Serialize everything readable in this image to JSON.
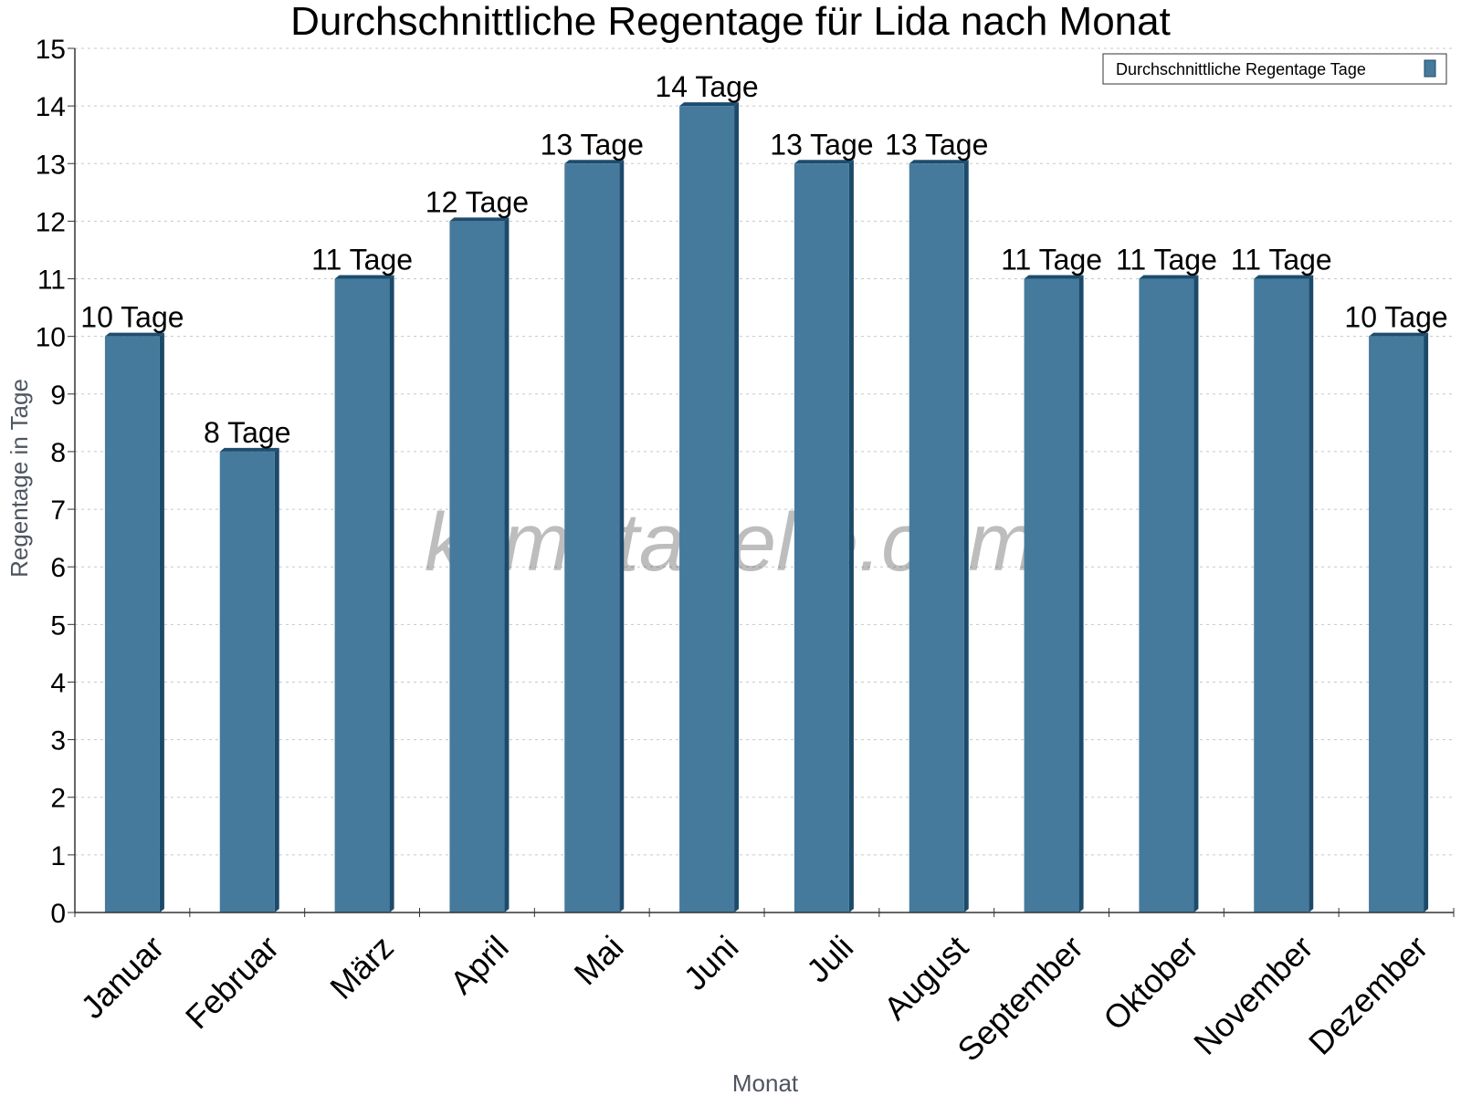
{
  "chart_data": {
    "type": "bar",
    "title": "Durchschnittliche Regentage für Lida nach Monat",
    "xlabel": "Monat",
    "ylabel": "Regentage in Tage",
    "ylim": [
      0,
      15
    ],
    "yticks": [
      0,
      1,
      2,
      3,
      4,
      5,
      6,
      7,
      8,
      9,
      10,
      11,
      12,
      13,
      14,
      15
    ],
    "grid": true,
    "legend_position": "top-right",
    "categories": [
      "Januar",
      "Februar",
      "März",
      "April",
      "Mai",
      "Juni",
      "Juli",
      "August",
      "September",
      "Oktober",
      "November",
      "Dezember"
    ],
    "series": [
      {
        "name": "Durchschnittliche Regentage Tage",
        "color": "#457a9c",
        "values": [
          10,
          8,
          11,
          12,
          13,
          14,
          13,
          13,
          11,
          11,
          11,
          10
        ],
        "labels": [
          "10 Tage",
          "8 Tage",
          "11 Tage",
          "12 Tage",
          "13 Tage",
          "14 Tage",
          "13 Tage",
          "13 Tage",
          "11 Tage",
          "11 Tage",
          "11 Tage",
          "10 Tage"
        ]
      }
    ]
  },
  "watermark": "klimatabelle.com",
  "colors": {
    "bar_face": "#457a9c",
    "bar_side": "#1c4a6a",
    "bar_top": "#1d4d6e",
    "grid": "#c8c8c8"
  }
}
